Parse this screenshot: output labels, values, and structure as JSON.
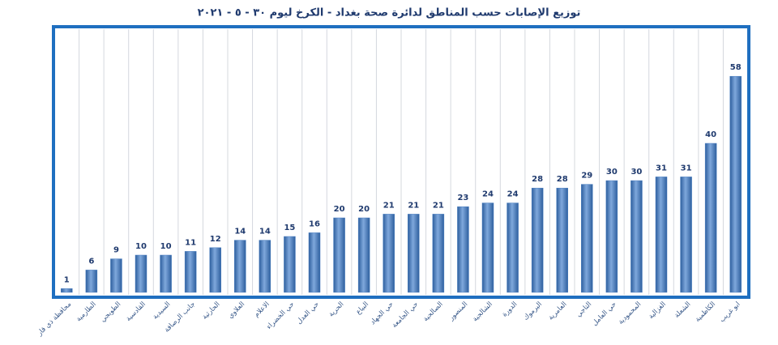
{
  "chart_data": {
    "type": "bar",
    "title": "توزيع الإصابات حسب المناطق لدائرة صحة بغداد - الكرخ ليوم ٣٠ - ٥ - ٢٠٢١",
    "categories": [
      "محافظة ذي قار",
      "الطارمية",
      "الطوبجي",
      "القادسية",
      "السيدية",
      "جانب الرصافة",
      "الحارثية",
      "العلاوي",
      "الاعلام",
      "حي الخضراء",
      "حي العدل",
      "الحرية",
      "البياع",
      "حي الجهاد",
      "حي الجامعة",
      "الصالحية",
      "المنصور",
      "الشالجية",
      "الدورة",
      "اليرموك",
      "العامرية",
      "التاجي",
      "حي العامل",
      "المحمودية",
      "الغزالية",
      "الشعلة",
      "الكاظمية",
      "ابو غريب"
    ],
    "values": [
      1,
      6,
      9,
      10,
      10,
      11,
      12,
      14,
      14,
      15,
      16,
      20,
      20,
      21,
      21,
      21,
      23,
      24,
      24,
      28,
      28,
      29,
      30,
      30,
      31,
      31,
      40,
      58
    ],
    "color": "#4a7fc1",
    "ylim": [
      0,
      60
    ]
  }
}
